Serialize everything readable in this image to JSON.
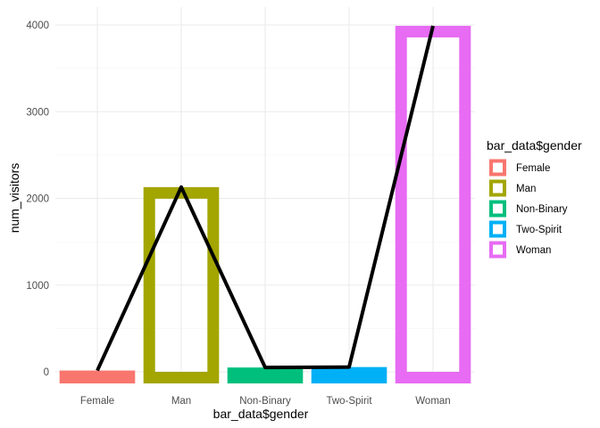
{
  "chart_data": {
    "type": "bar",
    "categories": [
      "Female",
      "Man",
      "Non-Binary",
      "Two-Spirit",
      "Woman"
    ],
    "values": [
      15,
      2130,
      50,
      55,
      3990
    ],
    "bar_colors": [
      "#F8766D",
      "#A3A500",
      "#00BF7D",
      "#00B0F6",
      "#E76BF3"
    ],
    "line_color": "#000000",
    "xlabel": "bar_data$gender",
    "ylabel": "num_visitors",
    "ylim": [
      0,
      4000
    ],
    "y_ticks": [
      0,
      1000,
      2000,
      3000,
      4000
    ],
    "grid": true,
    "legend": {
      "title": "bar_data$gender",
      "placement": "right",
      "entries": [
        "Female",
        "Man",
        "Non-Binary",
        "Two-Spirit",
        "Woman"
      ]
    },
    "overlay": {
      "type": "line",
      "values": [
        15,
        2130,
        50,
        55,
        3990
      ]
    }
  }
}
